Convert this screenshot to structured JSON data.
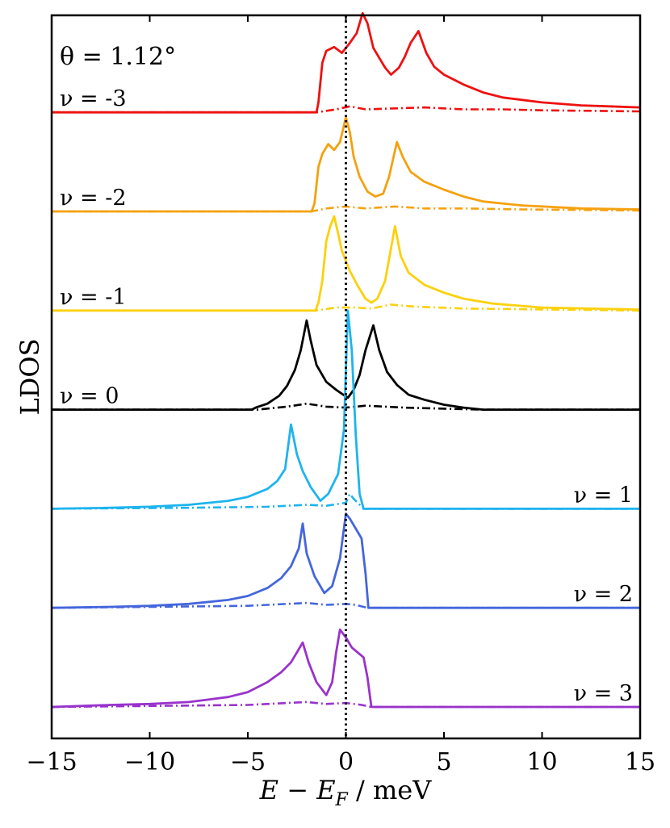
{
  "chart_data": {
    "type": "line",
    "title": "",
    "angle_label": "θ = 1.12°",
    "xlabel_parts": {
      "E": "E",
      "minus": " − ",
      "EF": "E",
      "sub": "F",
      "unit": " / meV"
    },
    "ylabel": "LDOS",
    "xlim": [
      -15,
      15
    ],
    "xticks": [
      -15,
      -10,
      -5,
      0,
      5,
      10,
      15
    ],
    "xtick_labels": [
      "−15",
      "−10",
      "−5",
      "0",
      "5",
      "10",
      "15"
    ],
    "fermi_line": {
      "x": 0,
      "style": "dotted",
      "color": "#000000"
    },
    "series": [
      {
        "name": "ν = -3",
        "label": "ν = -3",
        "label_side": "left",
        "color": "#ee1111",
        "offset": 6,
        "solid": [
          [
            -15,
            0
          ],
          [
            -1.5,
            0
          ],
          [
            -1.4,
            0.1
          ],
          [
            -1.2,
            0.5
          ],
          [
            -1.0,
            0.62
          ],
          [
            -0.6,
            0.66
          ],
          [
            -0.2,
            0.6
          ],
          [
            0.2,
            0.7
          ],
          [
            0.55,
            0.8
          ],
          [
            0.85,
            1.0
          ],
          [
            1.1,
            0.9
          ],
          [
            1.4,
            0.65
          ],
          [
            1.7,
            0.55
          ],
          [
            2.0,
            0.45
          ],
          [
            2.3,
            0.38
          ],
          [
            2.7,
            0.45
          ],
          [
            3.0,
            0.56
          ],
          [
            3.3,
            0.7
          ],
          [
            3.7,
            0.82
          ],
          [
            4.1,
            0.6
          ],
          [
            4.5,
            0.46
          ],
          [
            5.0,
            0.38
          ],
          [
            6.0,
            0.28
          ],
          [
            7.0,
            0.2
          ],
          [
            8.0,
            0.15
          ],
          [
            10.0,
            0.1
          ],
          [
            12.0,
            0.07
          ],
          [
            15.0,
            0.05
          ]
        ],
        "dashed": [
          [
            -15,
            0
          ],
          [
            -1.5,
            0
          ],
          [
            -0.5,
            0.03
          ],
          [
            0.2,
            0.06
          ],
          [
            1.0,
            0.03
          ],
          [
            2.5,
            0.04
          ],
          [
            4.0,
            0.05
          ],
          [
            6.0,
            0.03
          ],
          [
            8.0,
            0.03
          ],
          [
            10.0,
            0.02
          ],
          [
            15.0,
            0.01
          ]
        ]
      },
      {
        "name": "ν = -2",
        "label": "ν = -2",
        "label_side": "left",
        "color": "#f5a10f",
        "offset": 5,
        "solid": [
          [
            -15,
            0
          ],
          [
            -1.75,
            0
          ],
          [
            -1.6,
            0.08
          ],
          [
            -1.4,
            0.45
          ],
          [
            -1.2,
            0.58
          ],
          [
            -0.9,
            0.68
          ],
          [
            -0.6,
            0.62
          ],
          [
            -0.3,
            0.7
          ],
          [
            0.0,
            0.95
          ],
          [
            0.2,
            0.8
          ],
          [
            0.4,
            0.55
          ],
          [
            0.7,
            0.35
          ],
          [
            1.1,
            0.2
          ],
          [
            1.5,
            0.15
          ],
          [
            1.9,
            0.18
          ],
          [
            2.2,
            0.35
          ],
          [
            2.6,
            0.7
          ],
          [
            2.9,
            0.55
          ],
          [
            3.3,
            0.4
          ],
          [
            4.0,
            0.3
          ],
          [
            5.0,
            0.22
          ],
          [
            6.0,
            0.15
          ],
          [
            7.0,
            0.1
          ],
          [
            9.0,
            0.06
          ],
          [
            12.0,
            0.03
          ],
          [
            15.0,
            0.02
          ]
        ],
        "dashed": [
          [
            -15,
            0
          ],
          [
            -1.75,
            0
          ],
          [
            -1.0,
            0.03
          ],
          [
            0.0,
            0.05
          ],
          [
            1.0,
            0.03
          ],
          [
            2.5,
            0.05
          ],
          [
            4.0,
            0.03
          ],
          [
            6.0,
            0.03
          ],
          [
            9.0,
            0.02
          ],
          [
            15.0,
            0.01
          ]
        ]
      },
      {
        "name": "ν = -1",
        "label": "ν = -1",
        "label_side": "left",
        "color": "#fbd10e",
        "offset": 4,
        "solid": [
          [
            -15,
            0
          ],
          [
            -1.55,
            0
          ],
          [
            -1.4,
            0.08
          ],
          [
            -1.2,
            0.3
          ],
          [
            -1.0,
            0.7
          ],
          [
            -0.8,
            0.85
          ],
          [
            -0.6,
            0.95
          ],
          [
            -0.4,
            0.78
          ],
          [
            -0.2,
            0.6
          ],
          [
            0.2,
            0.4
          ],
          [
            0.6,
            0.25
          ],
          [
            1.0,
            0.12
          ],
          [
            1.3,
            0.08
          ],
          [
            1.6,
            0.12
          ],
          [
            2.0,
            0.3
          ],
          [
            2.5,
            0.85
          ],
          [
            2.8,
            0.55
          ],
          [
            3.2,
            0.38
          ],
          [
            4.0,
            0.26
          ],
          [
            5.0,
            0.18
          ],
          [
            6.0,
            0.12
          ],
          [
            7.5,
            0.07
          ],
          [
            10.0,
            0.03
          ],
          [
            15.0,
            0.01
          ]
        ],
        "dashed": [
          [
            -15,
            0
          ],
          [
            -1.55,
            0
          ],
          [
            -0.5,
            0.03
          ],
          [
            0.5,
            0.03
          ],
          [
            1.3,
            0.02
          ],
          [
            2.3,
            0.06
          ],
          [
            3.5,
            0.04
          ],
          [
            6.0,
            0.02
          ],
          [
            15.0,
            0
          ]
        ]
      },
      {
        "name": "ν = 0",
        "label": "ν = 0",
        "label_side": "left",
        "color": "#000000",
        "offset": 3,
        "solid": [
          [
            -15,
            0
          ],
          [
            -4.8,
            0
          ],
          [
            -4.6,
            0.02
          ],
          [
            -4.0,
            0.06
          ],
          [
            -3.4,
            0.14
          ],
          [
            -3.0,
            0.24
          ],
          [
            -2.6,
            0.4
          ],
          [
            -2.3,
            0.6
          ],
          [
            -2.0,
            0.9
          ],
          [
            -1.8,
            0.7
          ],
          [
            -1.5,
            0.45
          ],
          [
            -1.0,
            0.28
          ],
          [
            -0.5,
            0.2
          ],
          [
            -0.2,
            0.16
          ],
          [
            0.1,
            0.12
          ],
          [
            0.4,
            0.2
          ],
          [
            0.7,
            0.35
          ],
          [
            1.0,
            0.6
          ],
          [
            1.4,
            0.85
          ],
          [
            1.7,
            0.6
          ],
          [
            2.1,
            0.38
          ],
          [
            2.6,
            0.25
          ],
          [
            3.2,
            0.15
          ],
          [
            4.0,
            0.1
          ],
          [
            5.0,
            0.05
          ],
          [
            6.0,
            0.02
          ],
          [
            7.0,
            0
          ],
          [
            15.0,
            0
          ]
        ],
        "dashed": [
          [
            -15,
            0
          ],
          [
            -4.5,
            0
          ],
          [
            -3.0,
            0.03
          ],
          [
            -2.0,
            0.06
          ],
          [
            -1.0,
            0.03
          ],
          [
            0.0,
            0.02
          ],
          [
            1.0,
            0.04
          ],
          [
            2.0,
            0.03
          ],
          [
            3.0,
            0.02
          ],
          [
            5.0,
            0.01
          ],
          [
            7.0,
            0
          ],
          [
            15.0,
            0
          ]
        ]
      },
      {
        "name": "ν = 1",
        "label": "ν = 1",
        "label_side": "right",
        "color": "#1eb4ee",
        "offset": 2,
        "solid": [
          [
            -15,
            0
          ],
          [
            -12.0,
            0.01
          ],
          [
            -10.0,
            0.02
          ],
          [
            -8.0,
            0.04
          ],
          [
            -6.0,
            0.08
          ],
          [
            -5.0,
            0.12
          ],
          [
            -4.0,
            0.2
          ],
          [
            -3.5,
            0.28
          ],
          [
            -3.1,
            0.4
          ],
          [
            -2.8,
            0.85
          ],
          [
            -2.5,
            0.55
          ],
          [
            -2.2,
            0.38
          ],
          [
            -1.8,
            0.22
          ],
          [
            -1.3,
            0.08
          ],
          [
            -0.9,
            0.15
          ],
          [
            -0.4,
            0.35
          ],
          [
            -0.1,
            0.8
          ],
          [
            0.1,
            2.0
          ],
          [
            0.3,
            1.6
          ],
          [
            0.5,
            0.75
          ],
          [
            0.7,
            0.15
          ],
          [
            0.9,
            0
          ],
          [
            15.0,
            0
          ]
        ],
        "dashed": [
          [
            -15,
            0
          ],
          [
            -8.0,
            0.01
          ],
          [
            -4.0,
            0.02
          ],
          [
            -2.0,
            0.04
          ],
          [
            -1.0,
            0.03
          ],
          [
            0.0,
            0.06
          ],
          [
            0.2,
            0.15
          ],
          [
            0.4,
            0.1
          ],
          [
            0.8,
            0.02
          ],
          [
            0.9,
            0
          ],
          [
            15.0,
            0
          ]
        ]
      },
      {
        "name": "ν = 2",
        "label": "ν = 2",
        "label_side": "right",
        "color": "#4466dd",
        "offset": 1,
        "solid": [
          [
            -15,
            0
          ],
          [
            -12.0,
            0.01
          ],
          [
            -10.0,
            0.02
          ],
          [
            -8.0,
            0.04
          ],
          [
            -6.0,
            0.08
          ],
          [
            -5.0,
            0.12
          ],
          [
            -4.0,
            0.2
          ],
          [
            -3.3,
            0.3
          ],
          [
            -2.8,
            0.42
          ],
          [
            -2.4,
            0.6
          ],
          [
            -2.2,
            0.85
          ],
          [
            -2.0,
            0.55
          ],
          [
            -1.6,
            0.32
          ],
          [
            -1.1,
            0.15
          ],
          [
            -0.7,
            0.22
          ],
          [
            -0.3,
            0.5
          ],
          [
            0.0,
            0.95
          ],
          [
            0.2,
            0.9
          ],
          [
            0.5,
            0.8
          ],
          [
            0.8,
            0.7
          ],
          [
            1.0,
            0.35
          ],
          [
            1.15,
            0
          ],
          [
            15.0,
            0
          ]
        ],
        "dashed": [
          [
            -15,
            0
          ],
          [
            -10.0,
            0.01
          ],
          [
            -5.0,
            0.02
          ],
          [
            -2.0,
            0.05
          ],
          [
            -1.0,
            0.03
          ],
          [
            0.0,
            0.04
          ],
          [
            0.5,
            0.03
          ],
          [
            1.1,
            0
          ],
          [
            15.0,
            0
          ]
        ]
      },
      {
        "name": "ν = 3",
        "label": "ν = 3",
        "label_side": "right",
        "color": "#9933cc",
        "offset": 0,
        "solid": [
          [
            -15,
            0
          ],
          [
            -12.0,
            0.02
          ],
          [
            -10.0,
            0.03
          ],
          [
            -8.0,
            0.05
          ],
          [
            -6.0,
            0.1
          ],
          [
            -5.0,
            0.15
          ],
          [
            -4.0,
            0.25
          ],
          [
            -3.3,
            0.35
          ],
          [
            -2.8,
            0.45
          ],
          [
            -2.5,
            0.55
          ],
          [
            -2.2,
            0.65
          ],
          [
            -1.9,
            0.45
          ],
          [
            -1.5,
            0.25
          ],
          [
            -1.0,
            0.12
          ],
          [
            -0.7,
            0.25
          ],
          [
            -0.5,
            0.55
          ],
          [
            -0.3,
            0.78
          ],
          [
            0.0,
            0.7
          ],
          [
            0.3,
            0.6
          ],
          [
            0.6,
            0.55
          ],
          [
            0.9,
            0.5
          ],
          [
            1.1,
            0.3
          ],
          [
            1.3,
            0
          ],
          [
            15.0,
            0
          ]
        ],
        "dashed": [
          [
            -15,
            0
          ],
          [
            -10.0,
            0.01
          ],
          [
            -5.0,
            0.02
          ],
          [
            -2.0,
            0.05
          ],
          [
            -1.0,
            0.03
          ],
          [
            0.0,
            0.04
          ],
          [
            0.8,
            0.02
          ],
          [
            1.3,
            0
          ],
          [
            15.0,
            0
          ]
        ]
      }
    ]
  }
}
